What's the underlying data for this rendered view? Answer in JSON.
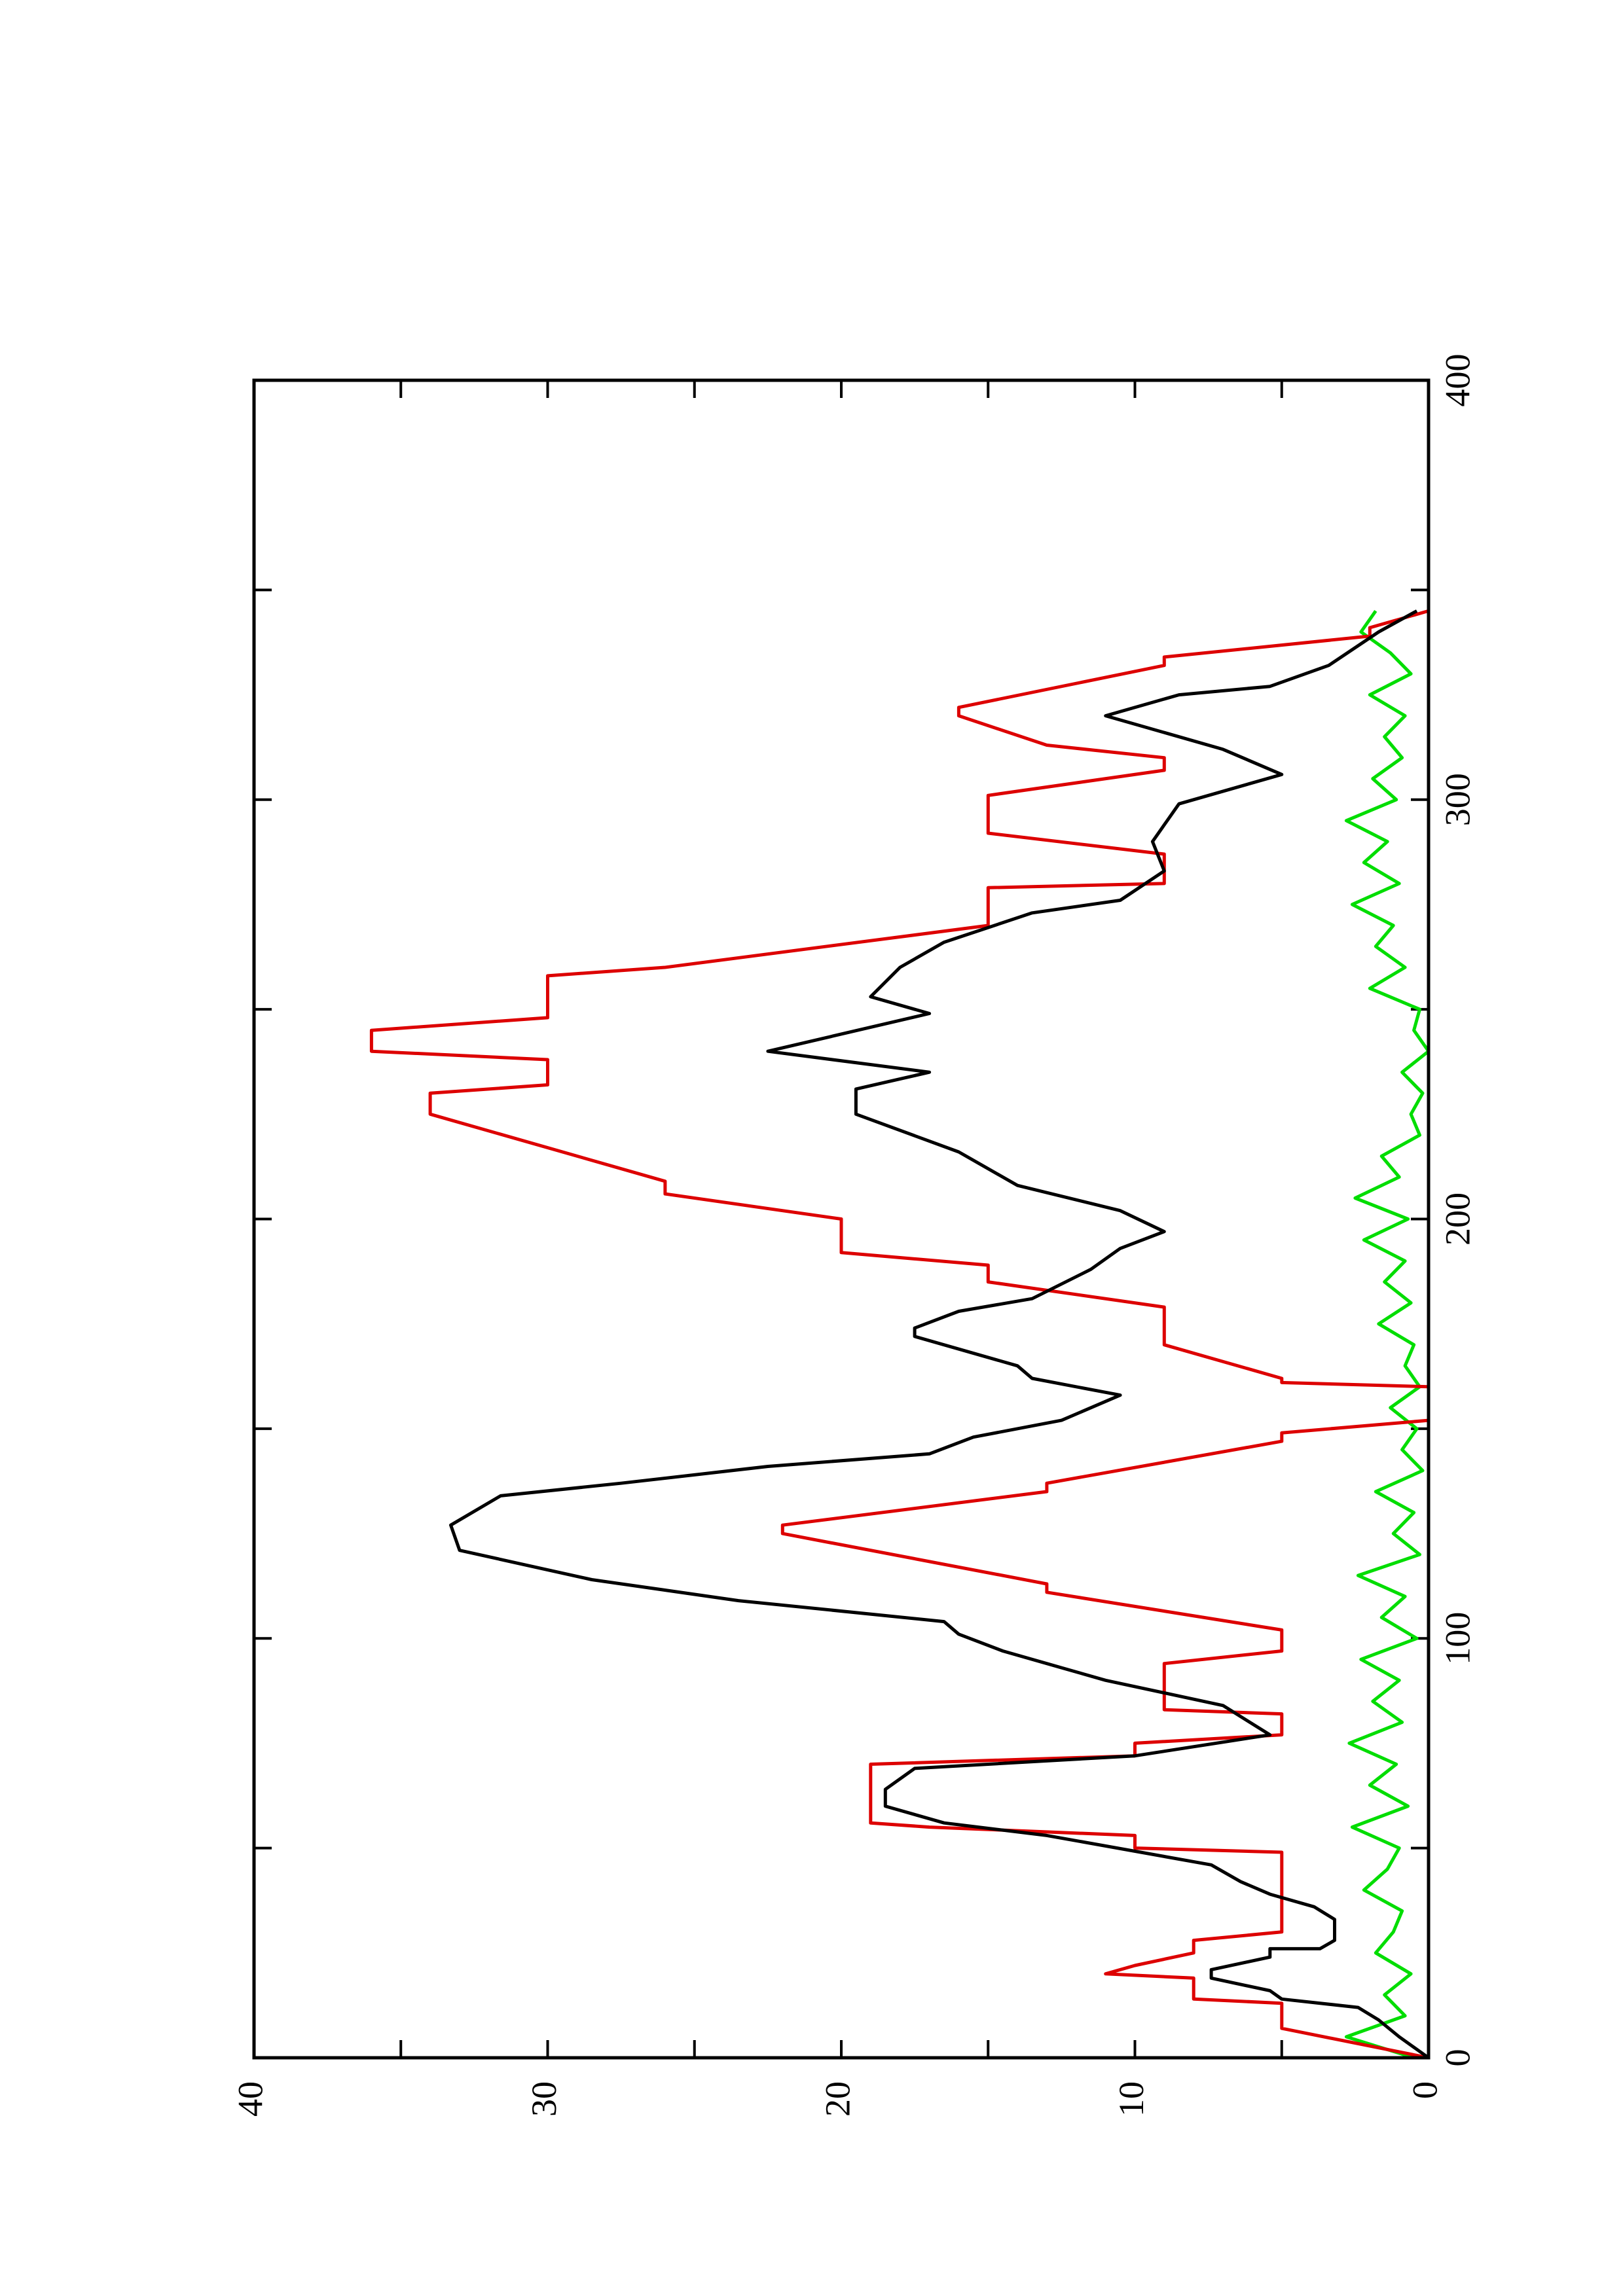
{
  "chart_data": {
    "type": "line",
    "orientation": "rotated",
    "xlim": [
      0,
      400
    ],
    "xticks": [
      0,
      100,
      200,
      300,
      400
    ],
    "xminorticks": [
      50,
      150,
      250,
      350
    ],
    "ylim": [
      0,
      40
    ],
    "yticks": [
      0,
      10,
      20,
      30,
      40
    ],
    "yminorticks": [
      5,
      15,
      25,
      35
    ],
    "series": [
      {
        "color": "#000000",
        "x": [
          0,
          5,
          9,
          12,
          14,
          16,
          19,
          21,
          24,
          26,
          26,
          28,
          33,
          36,
          39,
          42,
          46,
          53,
          56,
          60,
          64,
          69,
          72,
          77,
          84,
          90,
          93,
          97,
          101,
          104,
          109,
          114,
          121,
          127,
          134,
          137,
          141,
          144,
          148,
          152,
          158,
          162,
          165,
          172,
          174,
          178,
          181,
          188,
          193,
          197,
          202,
          208,
          216,
          225,
          231,
          235,
          240,
          249,
          253,
          260,
          266,
          273,
          276,
          283,
          290,
          299,
          306,
          312,
          320,
          325,
          327,
          332,
          340,
          345
        ],
        "values": [
          0,
          1,
          1.7,
          2.4,
          5,
          5.4,
          7.4,
          7.4,
          5.4,
          5.4,
          3.7,
          3.2,
          3.2,
          3.9,
          5.4,
          6.4,
          7.4,
          13,
          16.5,
          18.5,
          18.5,
          17.5,
          10,
          5.4,
          7,
          11,
          12.5,
          14.5,
          16,
          16.5,
          23.5,
          28.5,
          33,
          33.3,
          31.6,
          27.5,
          22.5,
          17,
          15.5,
          12.5,
          10.5,
          13.5,
          14,
          17.5,
          17.5,
          16,
          13.5,
          11.5,
          10.5,
          9,
          10.5,
          14,
          16,
          19.5,
          19.5,
          17,
          22.5,
          17,
          19,
          18,
          16.5,
          13.5,
          10.5,
          9,
          9.4,
          8.5,
          5,
          7,
          11,
          8.5,
          5.4,
          3.4,
          1.7,
          0.4
        ]
      },
      {
        "color": "#dd0000",
        "x": [
          0,
          7,
          13,
          14,
          19,
          20,
          22,
          25,
          28,
          30,
          49,
          50,
          53,
          55,
          56,
          70,
          72,
          75,
          77,
          82,
          83,
          94,
          97,
          102,
          111,
          113,
          125,
          127,
          135,
          137,
          147,
          149,
          152,
          160,
          161,
          162,
          170,
          179,
          185,
          189,
          192,
          200,
          206,
          209,
          225,
          230,
          232,
          238,
          240,
          245,
          248,
          258,
          260,
          270,
          279,
          280,
          287,
          292,
          301,
          307,
          310,
          313,
          320,
          322,
          332,
          334,
          339,
          341,
          345
        ],
        "values": [
          0,
          5,
          5,
          8,
          8,
          11,
          10,
          8,
          8,
          5,
          5,
          10,
          10,
          17,
          19,
          19,
          10,
          10,
          5,
          5,
          9,
          9,
          5,
          5,
          13,
          13,
          22,
          22,
          13,
          13,
          5,
          5,
          0,
          0,
          5,
          5,
          9,
          9,
          15,
          15,
          20,
          20,
          26,
          26,
          34,
          34,
          30,
          30,
          36,
          36,
          30,
          30,
          26,
          15,
          15,
          9,
          9,
          15,
          15,
          9,
          9,
          13,
          16,
          16,
          9,
          9,
          2,
          2,
          0
        ]
      },
      {
        "color": "#00dd00",
        "x": [
          0,
          5,
          10,
          15,
          20,
          25,
          30,
          35,
          40,
          45,
          50,
          55,
          60,
          65,
          70,
          75,
          80,
          85,
          90,
          95,
          100,
          105,
          110,
          115,
          120,
          125,
          130,
          135,
          140,
          145,
          150,
          155,
          160,
          165,
          170,
          175,
          180,
          185,
          190,
          195,
          200,
          205,
          210,
          215,
          220,
          225,
          230,
          235,
          240,
          245,
          250,
          255,
          260,
          265,
          270,
          275,
          280,
          285,
          290,
          295,
          300,
          305,
          310,
          315,
          320,
          325,
          330,
          335,
          340,
          345
        ],
        "values": [
          0.5,
          2.8,
          0.8,
          1.5,
          0.6,
          1.8,
          1.2,
          0.9,
          2.2,
          1.4,
          1.0,
          2.6,
          0.7,
          2.0,
          1.1,
          2.7,
          0.9,
          1.9,
          1.0,
          2.3,
          0.4,
          1.6,
          0.8,
          2.4,
          0.3,
          1.2,
          0.5,
          1.8,
          0.2,
          0.9,
          0.4,
          1.3,
          0.3,
          0.8,
          0.5,
          1.7,
          0.6,
          1.5,
          0.8,
          2.2,
          0.7,
          2.5,
          1.0,
          1.6,
          0.3,
          0.6,
          0.2,
          0.9,
          0.0,
          0.5,
          0.3,
          2.0,
          0.8,
          1.8,
          1.2,
          2.6,
          1.0,
          2.2,
          1.4,
          2.8,
          1.1,
          1.9,
          0.9,
          1.5,
          0.8,
          2.0,
          0.6,
          1.3,
          2.3,
          1.8
        ]
      }
    ]
  }
}
